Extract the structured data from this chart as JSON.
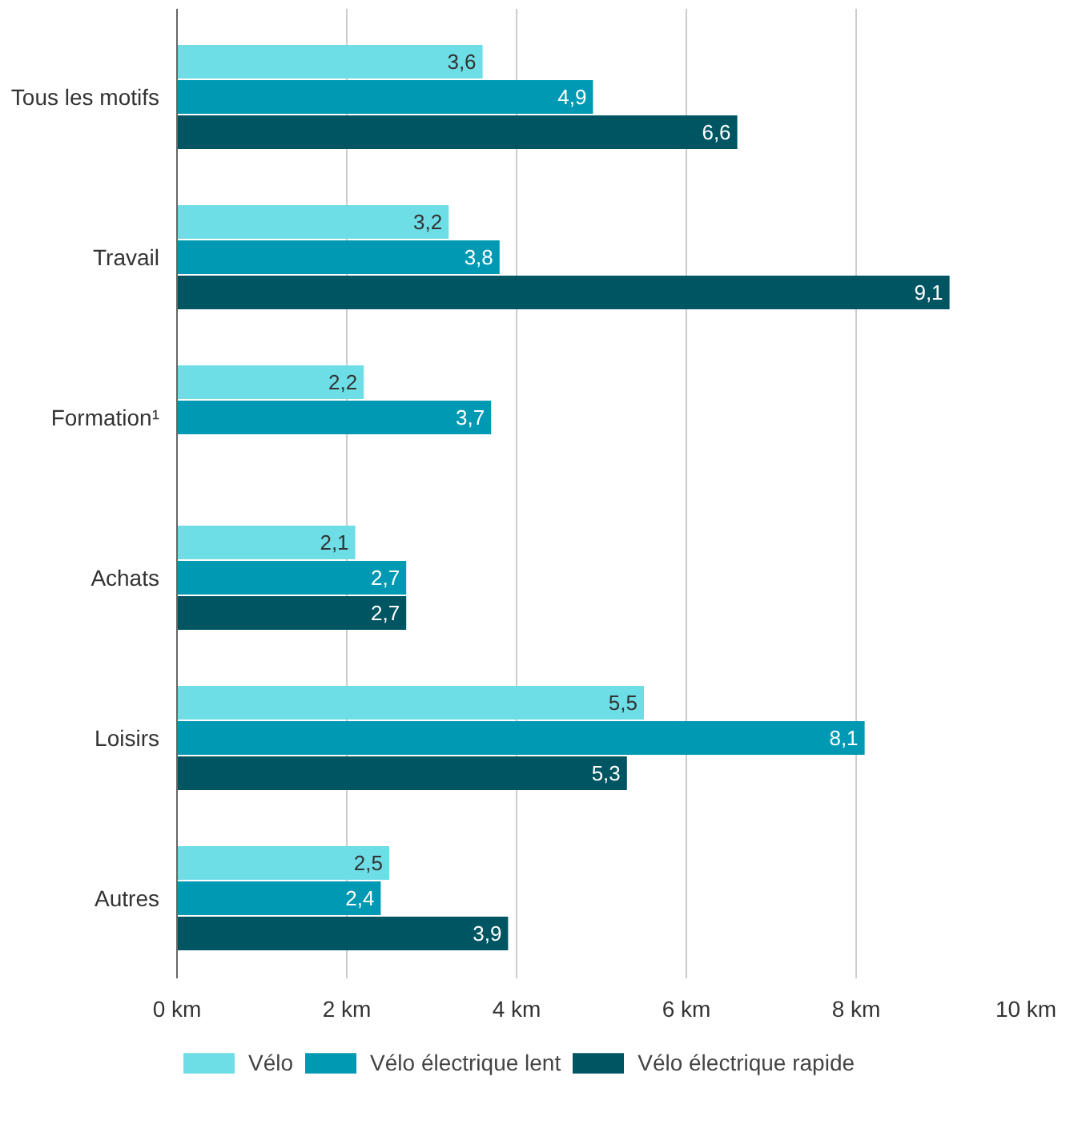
{
  "chart_data": {
    "type": "bar",
    "orientation": "horizontal",
    "categories": [
      "Tous les motifs",
      "Travail",
      "Formation¹",
      "Achats",
      "Loisirs",
      "Autres"
    ],
    "series": [
      {
        "name": "Vélo",
        "color": "#6ddde6",
        "values": [
          3.6,
          3.2,
          2.2,
          2.1,
          5.5,
          2.5
        ],
        "value_labels": [
          "3,6",
          "3,2",
          "2,2",
          "2,1",
          "5,5",
          "2,5"
        ]
      },
      {
        "name": "Vélo électrique lent",
        "color": "#0099b4",
        "values": [
          4.9,
          3.8,
          3.7,
          2.7,
          8.1,
          2.4
        ],
        "value_labels": [
          "4,9",
          "3,8",
          "3,7",
          "2,7",
          "8,1",
          "2,4"
        ]
      },
      {
        "name": "Vélo électrique rapide",
        "color": "#005563",
        "values": [
          6.6,
          9.1,
          null,
          2.7,
          5.3,
          3.9
        ],
        "value_labels": [
          "6,6",
          "9,1",
          null,
          "2,7",
          "5,3",
          "3,9"
        ]
      }
    ],
    "xlim": [
      0,
      10
    ],
    "xticks": [
      {
        "value": 0,
        "label": "0 km"
      },
      {
        "value": 2,
        "label": "2 km"
      },
      {
        "value": 4,
        "label": "4 km"
      },
      {
        "value": 6,
        "label": "6 km"
      },
      {
        "value": 8,
        "label": "8 km"
      },
      {
        "value": 10,
        "label": "10 km"
      }
    ],
    "grid": "x",
    "legend": "bottom"
  }
}
